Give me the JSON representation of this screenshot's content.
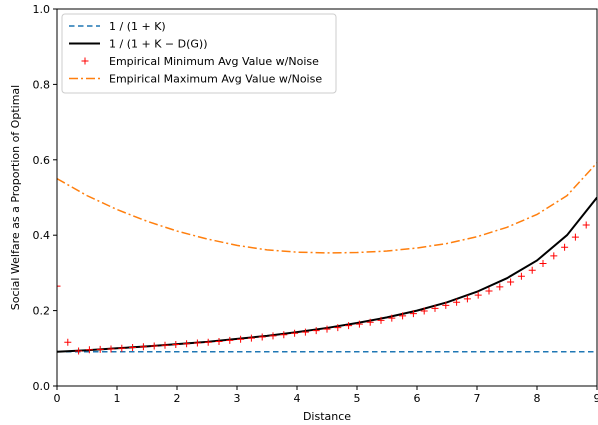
{
  "chart_data": {
    "type": "line",
    "xlabel": "Distance",
    "ylabel": "Social Welfare as a Proportion of Optimal",
    "xlim": [
      0,
      9
    ],
    "ylim": [
      0.0,
      1.0
    ],
    "xticks": [
      "0",
      "1",
      "2",
      "3",
      "4",
      "5",
      "6",
      "7",
      "8",
      "9"
    ],
    "yticks": [
      "0.0",
      "0.2",
      "0.4",
      "0.6",
      "0.8",
      "1.0"
    ],
    "grid": false,
    "legend_position": "top-left",
    "series": [
      {
        "name": "1 / (1 + K)",
        "style": "dashed",
        "color": "#1f77b4",
        "x": [
          0,
          9
        ],
        "y": [
          0.091,
          0.091
        ]
      },
      {
        "name": "1 / (1 + K − D(G))",
        "style": "solid",
        "color": "#000000",
        "x": [
          0,
          0.5,
          1,
          1.5,
          2,
          2.5,
          3,
          3.5,
          4,
          4.5,
          5,
          5.5,
          6,
          6.5,
          7,
          7.5,
          8,
          8.5,
          9
        ],
        "y": [
          0.091,
          0.095,
          0.1,
          0.105,
          0.111,
          0.117,
          0.125,
          0.133,
          0.143,
          0.154,
          0.167,
          0.182,
          0.2,
          0.222,
          0.25,
          0.286,
          0.333,
          0.4,
          0.5
        ]
      },
      {
        "name": "Empirical Minimum Avg Value w/Noise",
        "style": "markers",
        "marker": "+",
        "color": "#ff0000",
        "x": [
          0,
          0.18,
          0.36,
          0.54,
          0.72,
          0.9,
          1.08,
          1.26,
          1.44,
          1.62,
          1.8,
          1.98,
          2.16,
          2.34,
          2.52,
          2.7,
          2.88,
          3.06,
          3.24,
          3.42,
          3.6,
          3.78,
          3.96,
          4.14,
          4.32,
          4.5,
          4.68,
          4.86,
          5.04,
          5.22,
          5.4,
          5.58,
          5.76,
          5.94,
          6.12,
          6.3,
          6.48,
          6.66,
          6.84,
          7.02,
          7.2,
          7.38,
          7.56,
          7.74,
          7.92,
          8.1,
          8.28,
          8.46,
          8.64,
          8.82
        ],
        "y": [
          0.265,
          0.116,
          0.093,
          0.096,
          0.097,
          0.098,
          0.1,
          0.102,
          0.104,
          0.106,
          0.108,
          0.11,
          0.112,
          0.114,
          0.116,
          0.118,
          0.121,
          0.124,
          0.127,
          0.13,
          0.133,
          0.136,
          0.14,
          0.143,
          0.147,
          0.151,
          0.155,
          0.16,
          0.164,
          0.169,
          0.174,
          0.18,
          0.186,
          0.192,
          0.199,
          0.206,
          0.214,
          0.222,
          0.231,
          0.241,
          0.252,
          0.263,
          0.276,
          0.291,
          0.307,
          0.325,
          0.345,
          0.368,
          0.395,
          0.427
        ]
      },
      {
        "name": "Empirical Maximum Avg Value w/Noise",
        "style": "dashdot",
        "color": "#ff7f0e",
        "x": [
          0,
          0.5,
          1,
          1.5,
          2,
          2.5,
          3,
          3.5,
          4,
          4.5,
          5,
          5.5,
          6,
          6.5,
          7,
          7.5,
          8,
          8.5,
          9
        ],
        "y": [
          0.55,
          0.505,
          0.468,
          0.437,
          0.411,
          0.39,
          0.373,
          0.361,
          0.355,
          0.353,
          0.354,
          0.358,
          0.366,
          0.378,
          0.396,
          0.421,
          0.455,
          0.505,
          0.592
        ]
      }
    ]
  }
}
